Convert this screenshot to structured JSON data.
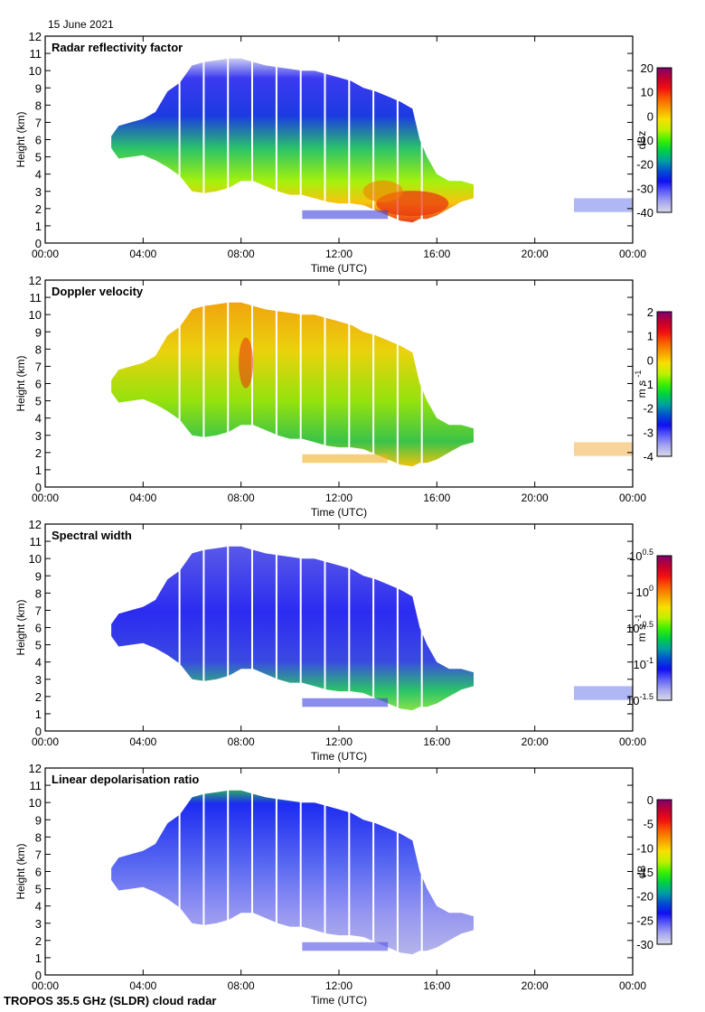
{
  "date_label": "15 June 2021",
  "footer": "TROPOS 35.5 GHz (SLDR) cloud radar",
  "chart_data": [
    {
      "type": "heatmap",
      "title": "Radar reflectivity factor",
      "xlabel": "Time (UTC)",
      "ylabel": "Height (km)",
      "xlim_hours": [
        0,
        24
      ],
      "x_ticks": [
        "00:00",
        "04:00",
        "08:00",
        "12:00",
        "16:00",
        "20:00",
        "00:00"
      ],
      "ylim": [
        0,
        12
      ],
      "y_ticks": [
        "0",
        "1",
        "2",
        "3",
        "4",
        "5",
        "6",
        "7",
        "8",
        "9",
        "10",
        "11",
        "12"
      ],
      "colorbar": {
        "label": "dBz",
        "range": [
          -40,
          20
        ],
        "ticks": [
          "20",
          "10",
          "0",
          "-10",
          "-20",
          "-30",
          "-40"
        ]
      },
      "dominant_echo": "blue upper cloud, green-yellow mid, orange-red 1.5-3.5 km between 13:00-17:00"
    },
    {
      "type": "heatmap",
      "title": "Doppler velocity",
      "xlabel": "Time (UTC)",
      "ylabel": "Height (km)",
      "xlim_hours": [
        0,
        24
      ],
      "x_ticks": [
        "00:00",
        "04:00",
        "08:00",
        "12:00",
        "16:00",
        "20:00",
        "00:00"
      ],
      "ylim": [
        0,
        12
      ],
      "y_ticks": [
        "0",
        "1",
        "2",
        "3",
        "4",
        "5",
        "6",
        "7",
        "8",
        "9",
        "10",
        "11",
        "12"
      ],
      "colorbar": {
        "label": "m s-1",
        "label_main": "m s",
        "label_sup": "-1",
        "range": [
          -4,
          2
        ],
        "ticks": [
          "2",
          "1",
          "0",
          "-1",
          "-2",
          "-3",
          "-4"
        ]
      },
      "dominant_echo": "mostly yellow-green (-1 to 0 m/s) with orange upper regions"
    },
    {
      "type": "heatmap",
      "title": "Spectral width",
      "xlabel": "Time (UTC)",
      "ylabel": "Height (km)",
      "xlim_hours": [
        0,
        24
      ],
      "x_ticks": [
        "00:00",
        "04:00",
        "08:00",
        "12:00",
        "16:00",
        "20:00",
        "00:00"
      ],
      "ylim": [
        0,
        12
      ],
      "y_ticks": [
        "0",
        "1",
        "2",
        "3",
        "4",
        "5",
        "6",
        "7",
        "8",
        "9",
        "10",
        "11",
        "12"
      ],
      "colorbar": {
        "label": "m s-1",
        "label_main": "m s",
        "label_sup": "-1",
        "range_log10": [
          -1.5,
          0.5
        ],
        "ticks": [
          {
            "base": "10",
            "exp": "0.5"
          },
          {
            "base": "10",
            "exp": "0"
          },
          {
            "base": "10",
            "exp": "-0.5"
          },
          {
            "base": "10",
            "exp": "-1"
          },
          {
            "base": "10",
            "exp": "-1.5"
          }
        ]
      },
      "dominant_echo": "mostly blue with green patches near cloud base"
    },
    {
      "type": "heatmap",
      "title": "Linear depolarisation ratio",
      "xlabel": "Time (UTC)",
      "ylabel": "Height (km)",
      "xlim_hours": [
        0,
        24
      ],
      "x_ticks": [
        "00:00",
        "04:00",
        "08:00",
        "12:00",
        "16:00",
        "20:00",
        "00:00"
      ],
      "ylim": [
        0,
        12
      ],
      "y_ticks": [
        "0",
        "1",
        "2",
        "3",
        "4",
        "5",
        "6",
        "7",
        "8",
        "9",
        "10",
        "11",
        "12"
      ],
      "colorbar": {
        "label": "dB",
        "range": [
          -30,
          0
        ],
        "ticks": [
          "0",
          "-5",
          "-10",
          "-15",
          "-20",
          "-25",
          "-30"
        ]
      },
      "dominant_echo": "pale to deep blue (-30 to -22 dB), scattered green near cloud top"
    }
  ],
  "echo_envelope": {
    "description": "Approximate main cloud echo: [time_hours, base_km, top_km]",
    "main": [
      [
        2.7,
        5.5,
        6.2
      ],
      [
        3.0,
        4.9,
        6.8
      ],
      [
        3.5,
        5.0,
        7.0
      ],
      [
        4.0,
        5.1,
        7.2
      ],
      [
        4.5,
        4.8,
        7.6
      ],
      [
        5.0,
        4.4,
        8.8
      ],
      [
        5.5,
        3.9,
        9.3
      ],
      [
        6.0,
        3.0,
        10.3
      ],
      [
        6.5,
        2.9,
        10.5
      ],
      [
        7.0,
        3.0,
        10.6
      ],
      [
        7.5,
        3.2,
        10.7
      ],
      [
        8.0,
        3.6,
        10.7
      ],
      [
        8.5,
        3.6,
        10.5
      ],
      [
        9.0,
        3.3,
        10.3
      ],
      [
        9.5,
        3.0,
        10.2
      ],
      [
        10.0,
        2.8,
        10.1
      ],
      [
        10.5,
        2.8,
        10.0
      ],
      [
        11.0,
        2.6,
        10.0
      ],
      [
        11.5,
        2.4,
        9.8
      ],
      [
        12.0,
        2.3,
        9.6
      ],
      [
        12.5,
        2.3,
        9.4
      ],
      [
        13.0,
        2.2,
        9.0
      ],
      [
        13.5,
        1.9,
        8.8
      ],
      [
        14.0,
        1.6,
        8.5
      ],
      [
        14.5,
        1.3,
        8.2
      ],
      [
        15.0,
        1.2,
        7.8
      ],
      [
        15.3,
        1.4,
        6.0
      ],
      [
        15.6,
        1.4,
        5.0
      ],
      [
        16.0,
        1.6,
        4.0
      ],
      [
        16.5,
        2.0,
        3.6
      ],
      [
        17.0,
        2.4,
        3.6
      ],
      [
        17.5,
        2.6,
        3.4
      ]
    ],
    "low_layer": [
      [
        10.5,
        1.4,
        1.9
      ],
      [
        14.0,
        1.4,
        1.9
      ]
    ],
    "late_patches": [
      [
        21.6,
        1.8,
        2.6
      ],
      [
        24.0,
        1.8,
        2.6
      ]
    ]
  }
}
